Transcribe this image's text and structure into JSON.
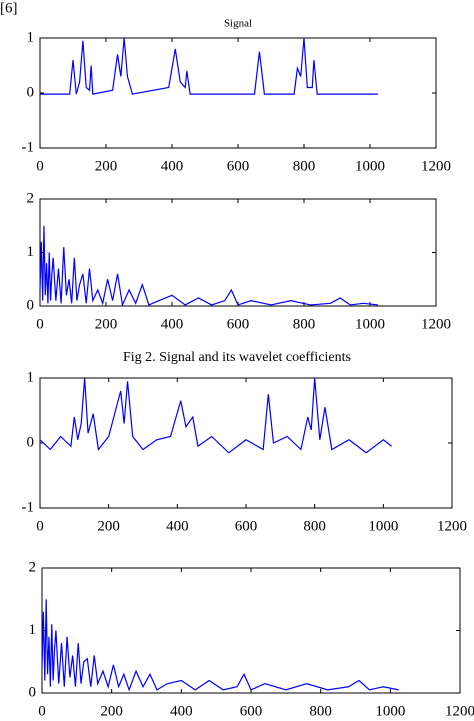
{
  "header": {
    "ref": "[6]"
  },
  "caption": "Fig 2. Signal and its wavelet coefficients",
  "chart_data": [
    {
      "type": "line",
      "title": "Signal",
      "x": [
        0,
        90,
        100,
        110,
        120,
        130,
        140,
        150,
        155,
        160,
        220,
        235,
        245,
        255,
        265,
        280,
        390,
        410,
        425,
        440,
        445,
        455,
        650,
        665,
        680,
        770,
        780,
        790,
        800,
        810,
        825,
        830,
        840,
        1024
      ],
      "series": [
        {
          "color": "#0000ff",
          "values": [
            -0.02,
            -0.02,
            0.6,
            -0.02,
            0.2,
            0.95,
            0.1,
            0.05,
            0.5,
            -0.02,
            0.05,
            0.7,
            0.3,
            1.0,
            0.3,
            -0.02,
            0.1,
            0.8,
            0.2,
            0.1,
            0.4,
            -0.02,
            -0.02,
            0.75,
            -0.02,
            -0.02,
            0.45,
            0.3,
            1.0,
            0.1,
            0.1,
            0.6,
            -0.02,
            -0.02
          ]
        }
      ],
      "xlim": [
        0,
        1200
      ],
      "xticks": [
        0,
        200,
        400,
        600,
        800,
        1000,
        1200
      ],
      "ylim": [
        -1,
        1
      ],
      "yticks": [
        -1,
        0,
        1
      ]
    },
    {
      "type": "line",
      "x": [
        0,
        4,
        8,
        12,
        16,
        20,
        24,
        28,
        32,
        36,
        40,
        48,
        56,
        64,
        72,
        80,
        88,
        96,
        104,
        112,
        120,
        130,
        140,
        150,
        160,
        175,
        190,
        205,
        220,
        235,
        250,
        270,
        290,
        310,
        330,
        360,
        400,
        440,
        480,
        520,
        560,
        580,
        600,
        640,
        700,
        760,
        820,
        880,
        910,
        940,
        980,
        1024
      ],
      "series": [
        {
          "color": "#0000ff",
          "values": [
            0.3,
            1.2,
            0.1,
            1.5,
            0.2,
            0.8,
            0.05,
            1.0,
            0.1,
            0.6,
            0.9,
            0.1,
            0.7,
            0.05,
            1.1,
            0.2,
            0.5,
            0.05,
            0.9,
            0.1,
            0.4,
            0.6,
            0.05,
            0.7,
            0.1,
            0.3,
            0.05,
            0.5,
            0.1,
            0.6,
            0.02,
            0.3,
            0.05,
            0.4,
            0.02,
            0.1,
            0.2,
            0.02,
            0.15,
            0.02,
            0.1,
            0.3,
            0.02,
            0.1,
            0.02,
            0.1,
            0.02,
            0.05,
            0.15,
            0.02,
            0.05,
            0.02
          ]
        }
      ],
      "xlim": [
        0,
        1200
      ],
      "xticks": [
        0,
        200,
        400,
        600,
        800,
        1000,
        1200
      ],
      "ylim": [
        0,
        2
      ],
      "yticks": [
        0,
        1,
        2
      ]
    },
    {
      "type": "line",
      "x": [
        0,
        30,
        60,
        90,
        100,
        110,
        120,
        130,
        140,
        155,
        170,
        200,
        235,
        245,
        255,
        270,
        300,
        340,
        380,
        410,
        425,
        445,
        460,
        500,
        550,
        600,
        650,
        665,
        680,
        720,
        760,
        780,
        790,
        800,
        815,
        830,
        850,
        900,
        950,
        1000,
        1024
      ],
      "series": [
        {
          "color": "#0000ff",
          "values": [
            0.05,
            -0.1,
            0.1,
            -0.05,
            0.4,
            0.05,
            0.3,
            1.0,
            0.15,
            0.45,
            -0.1,
            0.1,
            0.8,
            0.3,
            0.95,
            0.1,
            -0.1,
            0.05,
            0.1,
            0.65,
            0.25,
            0.4,
            -0.05,
            0.1,
            -0.15,
            0.05,
            -0.1,
            0.75,
            0.0,
            0.1,
            -0.1,
            0.4,
            0.2,
            1.0,
            0.05,
            0.55,
            -0.1,
            0.05,
            -0.15,
            0.05,
            -0.05
          ]
        }
      ],
      "xlim": [
        0,
        1200
      ],
      "xticks": [
        0,
        200,
        400,
        600,
        800,
        1000,
        1200
      ],
      "ylim": [
        -1,
        1
      ],
      "yticks": [
        -1,
        0,
        1
      ]
    },
    {
      "type": "line",
      "x": [
        0,
        4,
        8,
        12,
        16,
        20,
        24,
        28,
        32,
        36,
        40,
        48,
        56,
        64,
        72,
        80,
        88,
        96,
        104,
        112,
        120,
        130,
        140,
        150,
        160,
        175,
        190,
        205,
        220,
        235,
        250,
        270,
        290,
        310,
        330,
        360,
        400,
        440,
        480,
        520,
        560,
        580,
        600,
        640,
        700,
        760,
        820,
        880,
        910,
        940,
        980,
        1024
      ],
      "series": [
        {
          "color": "#0000ff",
          "values": [
            0.4,
            1.3,
            0.2,
            1.5,
            0.3,
            0.9,
            0.1,
            1.1,
            0.2,
            0.7,
            1.0,
            0.15,
            0.8,
            0.1,
            0.9,
            0.25,
            0.6,
            0.1,
            0.8,
            0.15,
            0.5,
            0.55,
            0.1,
            0.6,
            0.15,
            0.35,
            0.1,
            0.45,
            0.1,
            0.3,
            0.05,
            0.35,
            0.1,
            0.3,
            0.05,
            0.15,
            0.2,
            0.05,
            0.2,
            0.05,
            0.1,
            0.3,
            0.05,
            0.15,
            0.05,
            0.15,
            0.05,
            0.1,
            0.2,
            0.05,
            0.1,
            0.05
          ]
        }
      ],
      "xlim": [
        0,
        1200
      ],
      "xticks": [
        0,
        200,
        400,
        600,
        800,
        1000,
        1200
      ],
      "ylim": [
        0,
        2
      ],
      "yticks": [
        0,
        1,
        2
      ]
    }
  ]
}
